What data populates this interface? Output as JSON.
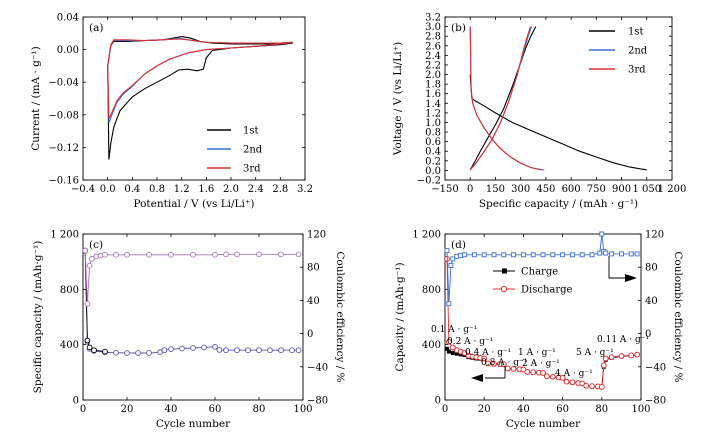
{
  "chart_data": [
    {
      "id": "a",
      "type": "line",
      "panel_label": "(a)",
      "xlabel": "Potential / V (vs Li/Li⁺)",
      "ylabel": "Current / (mA · g⁻¹)",
      "xlim": [
        -0.4,
        3.2
      ],
      "ylim": [
        -0.16,
        0.04
      ],
      "xticks": [
        -0.4,
        0.0,
        0.4,
        0.8,
        1.2,
        1.6,
        2.0,
        2.4,
        2.8,
        3.2
      ],
      "xtick_labels": [
        "−0.4",
        "0.0",
        "0.4",
        "0.8",
        "1.2",
        "1.6",
        "2.0",
        "2.4",
        "2.8",
        "3.2"
      ],
      "yticks": [
        0.04,
        0.0,
        -0.04,
        -0.08,
        -0.12,
        -0.16
      ],
      "ytick_labels": [
        "0.04",
        "0.00",
        "−0.04",
        "−0.08",
        "−0.12",
        "−0.16"
      ],
      "legend_position": "lower-right",
      "series": [
        {
          "name": "1st",
          "color": "#000000",
          "x": [
            0.0,
            0.05,
            0.1,
            0.3,
            0.6,
            0.9,
            1.2,
            1.35,
            1.5,
            1.7,
            2.0,
            2.4,
            2.8,
            3.0,
            3.0,
            2.8,
            2.4,
            2.0,
            1.7,
            1.6,
            1.55,
            1.45,
            1.3,
            1.15,
            1.0,
            0.8,
            0.6,
            0.4,
            0.2,
            0.1,
            0.05,
            0.02
          ],
          "y": [
            -0.02,
            0.005,
            0.01,
            0.01,
            0.011,
            0.012,
            0.016,
            0.014,
            0.01,
            0.008,
            0.007,
            0.007,
            0.007,
            0.008,
            0.008,
            0.006,
            0.004,
            0.002,
            -0.001,
            -0.01,
            -0.024,
            -0.026,
            -0.024,
            -0.025,
            -0.032,
            -0.04,
            -0.048,
            -0.058,
            -0.075,
            -0.095,
            -0.115,
            -0.135
          ]
        },
        {
          "name": "2nd",
          "color": "#3a6fd0",
          "x": [
            0.0,
            0.05,
            0.1,
            0.3,
            0.6,
            0.9,
            1.15,
            1.3,
            1.6,
            2.0,
            2.4,
            2.8,
            3.0,
            3.0,
            2.8,
            2.4,
            2.0,
            1.6,
            1.3,
            1.0,
            0.8,
            0.6,
            0.4,
            0.25,
            0.15,
            0.08,
            0.02
          ],
          "y": [
            -0.02,
            0.005,
            0.011,
            0.011,
            0.011,
            0.012,
            0.014,
            0.012,
            0.009,
            0.008,
            0.008,
            0.008,
            0.009,
            0.009,
            0.007,
            0.004,
            0.002,
            0.0,
            -0.004,
            -0.012,
            -0.02,
            -0.03,
            -0.045,
            -0.055,
            -0.065,
            -0.078,
            -0.09
          ]
        },
        {
          "name": "3rd",
          "color": "#d93030",
          "x": [
            0.0,
            0.05,
            0.1,
            0.3,
            0.6,
            0.9,
            1.15,
            1.3,
            1.6,
            2.0,
            2.4,
            2.8,
            3.0,
            3.0,
            2.8,
            2.4,
            2.0,
            1.6,
            1.3,
            1.0,
            0.8,
            0.6,
            0.4,
            0.25,
            0.15,
            0.08,
            0.02
          ],
          "y": [
            -0.02,
            0.006,
            0.012,
            0.012,
            0.011,
            0.012,
            0.013,
            0.012,
            0.009,
            0.008,
            0.008,
            0.008,
            0.009,
            0.009,
            0.007,
            0.004,
            0.002,
            0.0,
            -0.004,
            -0.012,
            -0.02,
            -0.03,
            -0.044,
            -0.053,
            -0.063,
            -0.075,
            -0.085
          ]
        }
      ]
    },
    {
      "id": "b",
      "type": "line",
      "panel_label": "(b)",
      "xlabel": "Specific capacity / (mAh · g⁻¹)",
      "ylabel": "Voltage / V (vs Li/Li⁺)",
      "xlim": [
        -150,
        1200
      ],
      "ylim": [
        -0.2,
        3.2
      ],
      "xticks": [
        -150,
        0,
        150,
        300,
        450,
        600,
        750,
        900,
        1050,
        1200
      ],
      "xtick_labels": [
        "−150",
        "0",
        "150",
        "300",
        "450",
        "600",
        "750",
        "900",
        "1 050",
        "1 200"
      ],
      "yticks": [
        -0.2,
        0.0,
        0.2,
        0.4,
        0.6,
        0.8,
        1.0,
        1.2,
        1.4,
        1.6,
        1.8,
        2.0,
        2.2,
        2.4,
        2.6,
        2.8,
        3.0,
        3.2
      ],
      "ytick_labels": [
        "−0.2",
        "0.0",
        "0.2",
        "0.4",
        "0.6",
        "0.8",
        "1.0",
        "1.2",
        "1.4",
        "1.6",
        "1.8",
        "2.0",
        "2.2",
        "2.4",
        "2.6",
        "2.8",
        "3.0",
        "3.2"
      ],
      "legend_position": "top-right",
      "series": [
        {
          "name": "1st",
          "color": "#000000",
          "segments": [
            {
              "x": [
                0,
                5,
                10,
                30,
                80,
                150,
                250,
                350,
                450,
                550,
                650,
                750,
                850,
                950,
                1050
              ],
              "y": [
                2.0,
                1.7,
                1.5,
                1.45,
                1.35,
                1.2,
                1.0,
                0.85,
                0.7,
                0.55,
                0.4,
                0.28,
                0.16,
                0.07,
                0.01
              ]
            },
            {
              "x": [
                0,
                30,
                60,
                100,
                150,
                200,
                250,
                300,
                330,
                360,
                390
              ],
              "y": [
                0.01,
                0.2,
                0.4,
                0.65,
                0.95,
                1.3,
                1.75,
                2.25,
                2.55,
                2.8,
                3.0
              ]
            }
          ]
        },
        {
          "name": "2nd",
          "color": "#3a6fd0",
          "segments": [
            {
              "x": [
                0,
                5,
                15,
                40,
                80,
                130,
                180,
                240,
                300,
                360,
                420,
                440
              ],
              "y": [
                3.0,
                1.7,
                1.4,
                1.15,
                0.9,
                0.65,
                0.45,
                0.28,
                0.15,
                0.06,
                0.02,
                0.01
              ]
            },
            {
              "x": [
                0,
                40,
                80,
                130,
                180,
                230,
                280,
                320,
                345,
                365
              ],
              "y": [
                0.01,
                0.18,
                0.38,
                0.65,
                1.0,
                1.45,
                2.0,
                2.5,
                2.8,
                3.0
              ]
            }
          ]
        },
        {
          "name": "3rd",
          "color": "#d93030",
          "segments": [
            {
              "x": [
                0,
                5,
                15,
                40,
                80,
                130,
                180,
                240,
                300,
                360,
                410,
                425
              ],
              "y": [
                3.0,
                1.7,
                1.4,
                1.15,
                0.9,
                0.65,
                0.45,
                0.28,
                0.15,
                0.06,
                0.02,
                0.01
              ]
            },
            {
              "x": [
                0,
                40,
                80,
                130,
                180,
                230,
                280,
                315,
                340,
                358
              ],
              "y": [
                0.01,
                0.18,
                0.38,
                0.65,
                1.0,
                1.45,
                2.0,
                2.5,
                2.8,
                3.0
              ]
            }
          ]
        }
      ]
    },
    {
      "id": "c",
      "type": "scatter",
      "panel_label": "(c)",
      "xlabel": "Cycle number",
      "ylabel": "Specific capacity / (mAh·g⁻¹)",
      "y2label": "Coulombic efficiency / %",
      "xlim": [
        0,
        100
      ],
      "ylim": [
        0,
        1200
      ],
      "y2lim": [
        -80,
        120
      ],
      "xticks": [
        0,
        20,
        40,
        60,
        80,
        100
      ],
      "xtick_labels": [
        "0",
        "20",
        "40",
        "60",
        "80",
        "100"
      ],
      "yticks": [
        0,
        400,
        800,
        1200
      ],
      "ytick_labels": [
        "0",
        "400",
        "800",
        "1 200"
      ],
      "y2ticks": [
        -80,
        -40,
        0,
        40,
        80,
        120
      ],
      "y2tick_labels": [
        "−80",
        "−40",
        "0",
        "40",
        "80",
        "120"
      ],
      "series": [
        {
          "kind": "capacity",
          "color": "#5a55b0",
          "x": [
            1,
            2,
            3,
            5,
            10,
            15,
            20,
            25,
            30,
            35,
            37,
            40,
            45,
            50,
            55,
            60,
            62,
            65,
            70,
            75,
            80,
            85,
            90,
            95,
            98
          ],
          "y": [
            1080,
            420,
            370,
            355,
            345,
            342,
            340,
            340,
            340,
            345,
            360,
            368,
            372,
            376,
            380,
            385,
            362,
            360,
            360,
            360,
            360,
            360,
            360,
            360,
            360
          ]
        },
        {
          "kind": "capacity-alt",
          "color": "#000000",
          "x": [
            1,
            2,
            3,
            5,
            10
          ],
          "y": [
            1080,
            430,
            380,
            360,
            350
          ]
        },
        {
          "kind": "coulombic_efficiency",
          "color": "#b070c0",
          "axis": "right",
          "x": [
            1,
            2,
            3,
            4,
            6,
            8,
            10,
            15,
            20,
            30,
            40,
            50,
            60,
            65,
            70,
            80,
            90,
            98
          ],
          "y": [
            100,
            36,
            82,
            90,
            93,
            94,
            95,
            95,
            95,
            95,
            95,
            95,
            95,
            95.5,
            95.5,
            95.5,
            95.5,
            95.5
          ]
        }
      ]
    },
    {
      "id": "d",
      "type": "scatter",
      "panel_label": "(d)",
      "xlabel": "Cycle number",
      "ylabel": "Capacity / (mAh·g⁻¹)",
      "y2label": "Coulombic efficiency / %",
      "xlim": [
        0,
        100
      ],
      "ylim": [
        0,
        1200
      ],
      "y2lim": [
        -80,
        120
      ],
      "xticks": [
        0,
        20,
        40,
        60,
        80,
        100
      ],
      "xtick_labels": [
        "0",
        "20",
        "40",
        "60",
        "80",
        "100"
      ],
      "yticks": [
        0,
        400,
        800,
        1200
      ],
      "ytick_labels": [
        "0",
        "400",
        "800",
        "1 200"
      ],
      "y2ticks": [
        -80,
        -40,
        0,
        40,
        80,
        120
      ],
      "y2tick_labels": [
        "−80",
        "−40",
        "0",
        "40",
        "80",
        "120"
      ],
      "legend_position": "upper-middle",
      "annotations": [
        "0.1 A · g⁻¹",
        "0.2 A · g⁻¹",
        "0.4 A · g⁻¹",
        "0.8 A · g⁻¹",
        "1 A · g⁻¹",
        "2 A · g⁻¹",
        "4 A · g⁻¹",
        "5 A · g⁻¹",
        "0.11 A · g⁻¹"
      ],
      "series": [
        {
          "name": "Charge",
          "color": "#000000",
          "x": [
            1,
            2,
            4,
            6,
            8,
            10,
            12,
            14,
            16,
            18,
            20,
            22,
            25,
            28,
            30,
            32,
            35,
            38,
            40,
            42,
            45,
            48,
            50,
            52,
            55,
            58,
            60,
            62,
            65,
            68,
            70,
            72,
            75,
            78,
            80,
            81,
            82,
            85,
            90,
            95,
            98
          ],
          "y": [
            370,
            350,
            340,
            335,
            330,
            325,
            310,
            305,
            300,
            298,
            295,
            260,
            258,
            255,
            255,
            225,
            222,
            220,
            218,
            200,
            198,
            195,
            193,
            170,
            165,
            160,
            158,
            130,
            125,
            120,
            118,
            100,
            98,
            95,
            93,
            240,
            290,
            305,
            315,
            320,
            325
          ]
        },
        {
          "name": "Discharge",
          "color": "#e03030",
          "x": [
            1,
            2,
            4,
            6,
            8,
            10,
            12,
            14,
            16,
            18,
            20,
            22,
            25,
            28,
            30,
            32,
            35,
            38,
            40,
            42,
            45,
            48,
            50,
            52,
            55,
            58,
            60,
            62,
            65,
            68,
            70,
            72,
            75,
            78,
            80,
            81,
            82,
            85,
            90,
            95,
            98
          ],
          "y": [
            1020,
            420,
            380,
            360,
            350,
            340,
            320,
            315,
            310,
            305,
            300,
            265,
            262,
            260,
            258,
            228,
            225,
            222,
            220,
            203,
            200,
            198,
            195,
            172,
            168,
            163,
            160,
            133,
            128,
            123,
            120,
            103,
            100,
            98,
            95,
            250,
            300,
            310,
            318,
            322,
            328
          ]
        },
        {
          "name": "Coulombic efficiency",
          "color": "#3a6fd0",
          "axis": "right",
          "x": [
            1,
            2,
            3,
            4,
            6,
            8,
            10,
            15,
            20,
            25,
            30,
            35,
            40,
            45,
            50,
            55,
            60,
            65,
            70,
            75,
            79,
            80,
            81,
            82,
            85,
            90,
            95,
            98
          ],
          "y": [
            100,
            36,
            82,
            90,
            93,
            94,
            95,
            95,
            95,
            95,
            95,
            95,
            95,
            95,
            95,
            95,
            95,
            95,
            95,
            95,
            97,
            120,
            99,
            97,
            96,
            96,
            96,
            96
          ]
        }
      ]
    }
  ]
}
